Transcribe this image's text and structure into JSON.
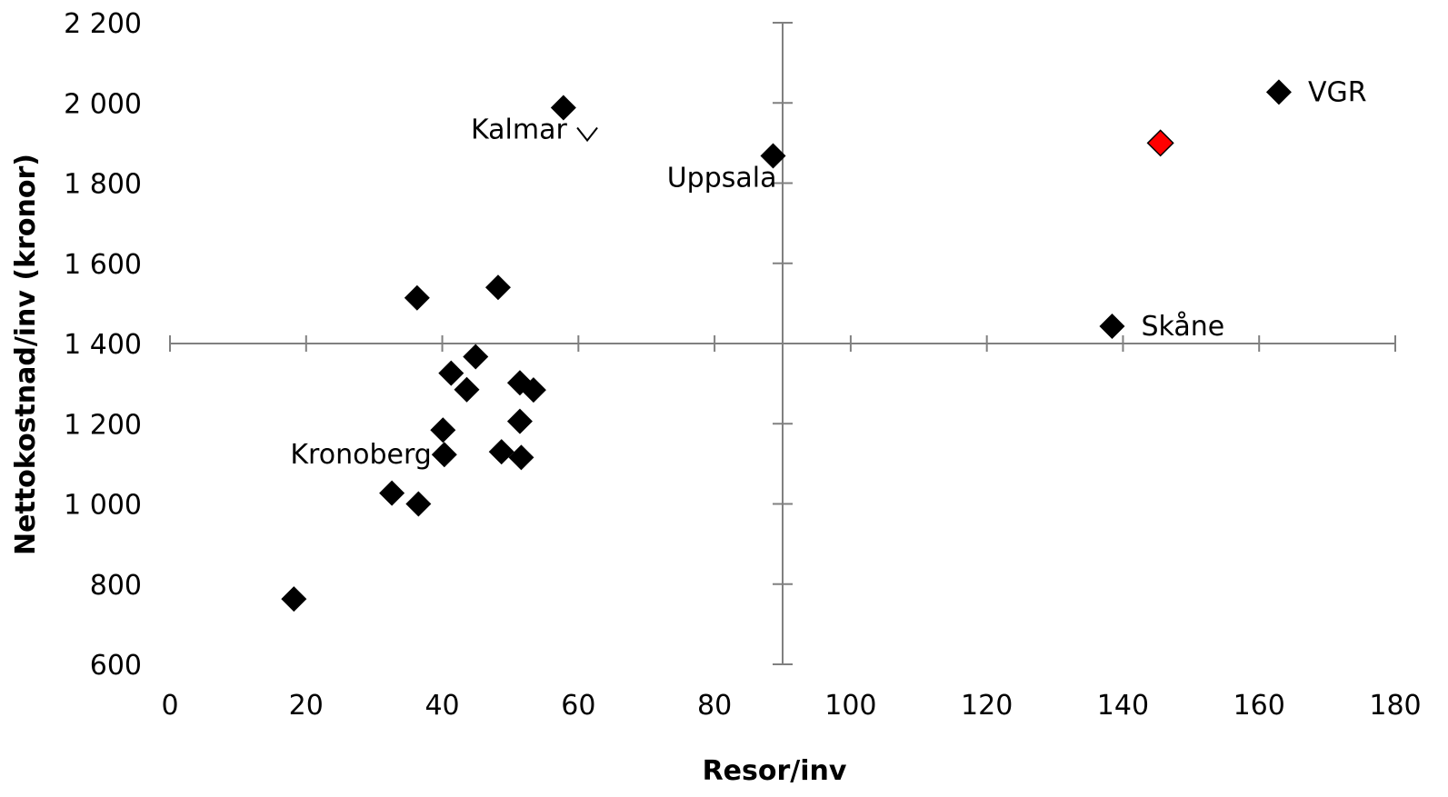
{
  "chart_data": {
    "type": "scatter",
    "xlabel": "Resor/inv",
    "ylabel": "Nettokostnad/inv  (kronor)",
    "xlim": [
      0,
      180
    ],
    "ylim": [
      600,
      2200
    ],
    "x_ticks": [
      0,
      20,
      40,
      60,
      80,
      100,
      120,
      140,
      160,
      180
    ],
    "y_ticks": [
      600,
      800,
      1000,
      1200,
      1400,
      1600,
      1800,
      2000,
      2200
    ],
    "x_tick_labels": [
      "0",
      "20",
      "40",
      "60",
      "80",
      "100",
      "120",
      "140",
      "160",
      "180"
    ],
    "y_tick_labels": [
      "600",
      "800",
      "1 000",
      "1 200",
      "1 400",
      "1 600",
      "1 800",
      "2 000",
      "2 200"
    ],
    "quadrant_lines": {
      "x": 90,
      "y": 1400
    },
    "grid": false,
    "colors": {
      "default": "#000000",
      "highlight": "#ff0000",
      "axis": "#808080"
    },
    "points": [
      {
        "x": 57.8,
        "y": 1988,
        "label": "Kalmar",
        "label_pos": "below-left"
      },
      {
        "x": 88.6,
        "y": 1868,
        "label": "Uppsala",
        "label_pos": "below-left"
      },
      {
        "x": 162.9,
        "y": 2027,
        "label": "VGR",
        "label_pos": "right"
      },
      {
        "x": 138.4,
        "y": 1443,
        "label": "Skåne",
        "label_pos": "right"
      },
      {
        "x": 40.3,
        "y": 1123,
        "label": "Kronoberg",
        "label_pos": "left"
      },
      {
        "x": 145.5,
        "y": 1900,
        "style": "highlight"
      },
      {
        "x": 61.3,
        "y": 1920,
        "style": "hollow"
      },
      {
        "x": 36.3,
        "y": 1514
      },
      {
        "x": 48.2,
        "y": 1540
      },
      {
        "x": 44.9,
        "y": 1367
      },
      {
        "x": 41.3,
        "y": 1326
      },
      {
        "x": 43.6,
        "y": 1285
      },
      {
        "x": 51.4,
        "y": 1302
      },
      {
        "x": 53.4,
        "y": 1284
      },
      {
        "x": 51.4,
        "y": 1206
      },
      {
        "x": 40.1,
        "y": 1184
      },
      {
        "x": 48.7,
        "y": 1130
      },
      {
        "x": 51.6,
        "y": 1116
      },
      {
        "x": 32.6,
        "y": 1027
      },
      {
        "x": 36.5,
        "y": 1000
      },
      {
        "x": 18.2,
        "y": 763
      }
    ]
  }
}
